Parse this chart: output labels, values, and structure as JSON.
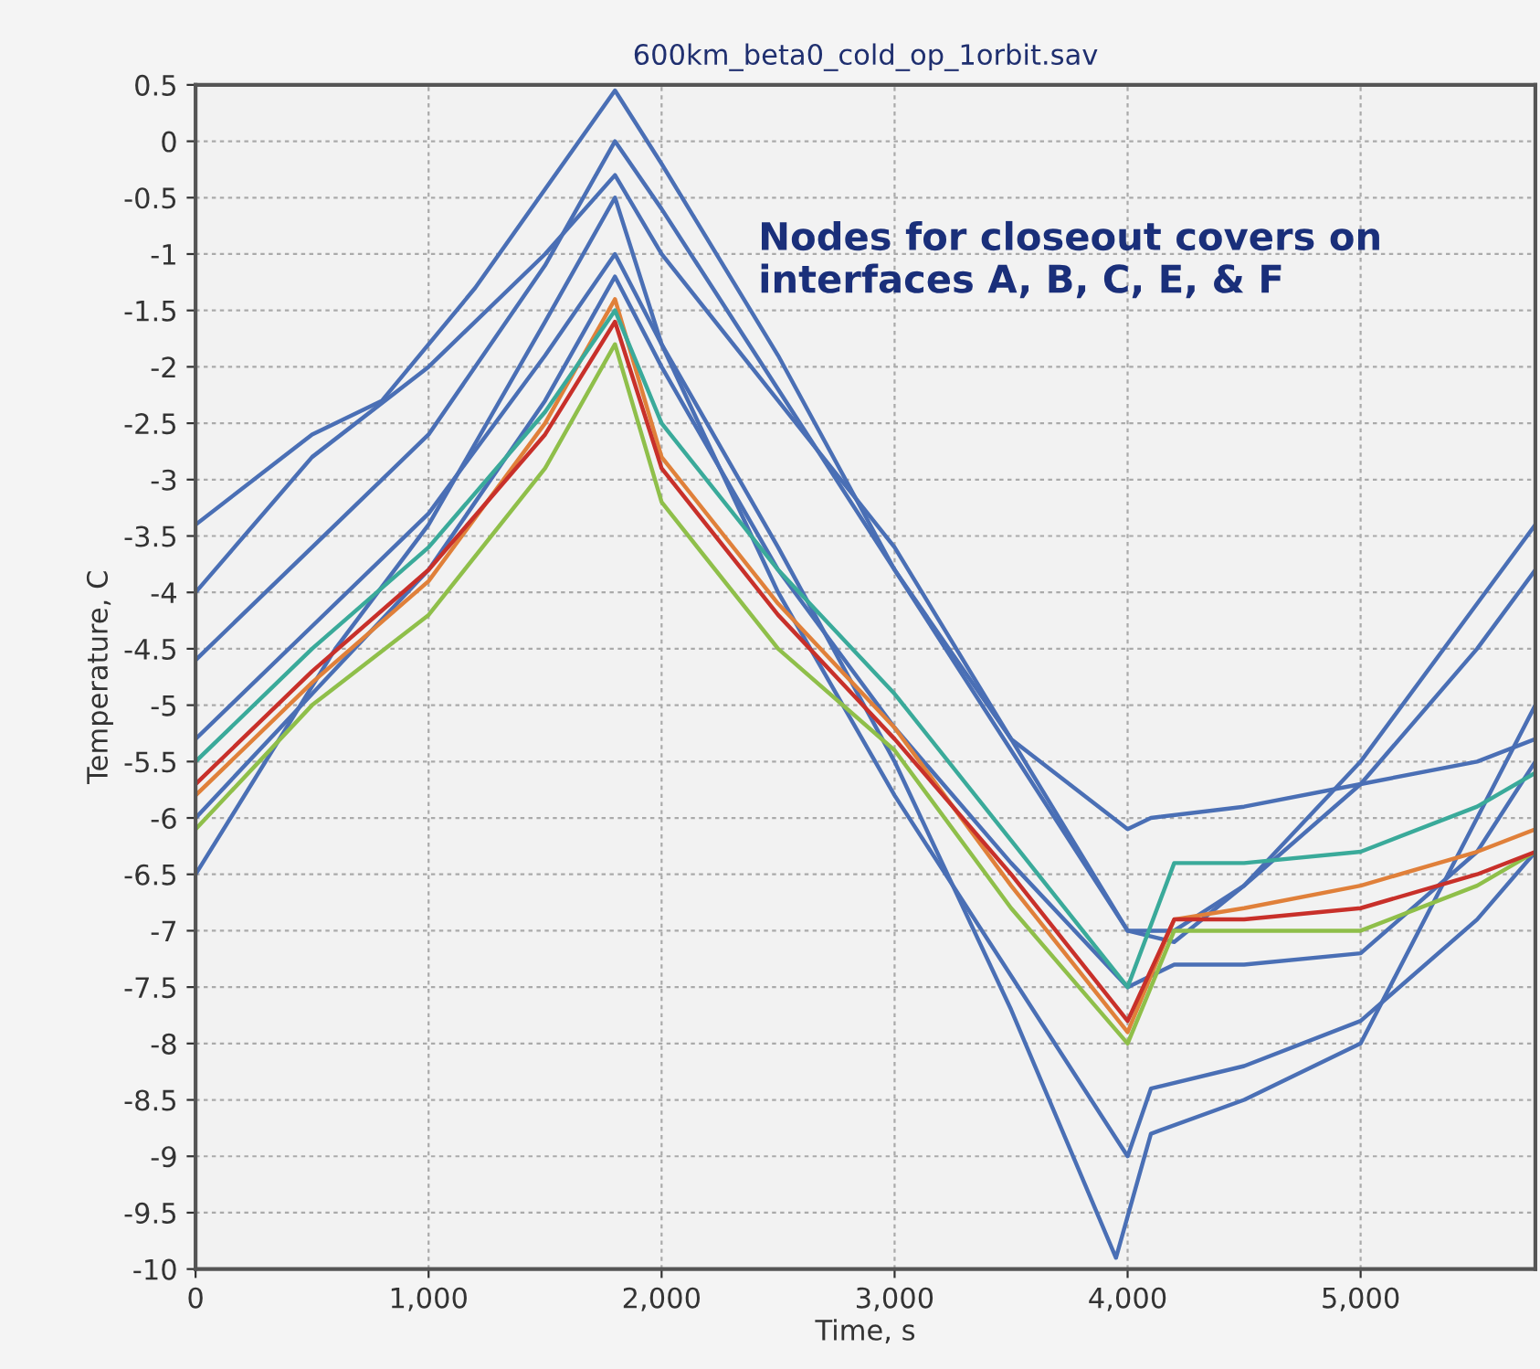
{
  "chart_data": {
    "type": "line",
    "title": "600km_beta0_cold_op_1orbit.sav",
    "xlabel": "Time, s",
    "ylabel": "Temperature, C",
    "annotations": [
      "Nodes for closeout covers on interfaces A, B, C, E, & F"
    ],
    "xlim": [
      0,
      5750
    ],
    "ylim": [
      -10,
      0.5
    ],
    "xticks": [
      0,
      {
        "value": 1000,
        "label": "1,000"
      },
      {
        "value": 2000,
        "label": "2,000"
      },
      {
        "value": 3000,
        "label": "3,000"
      },
      {
        "value": 4000,
        "label": "4,000"
      },
      {
        "value": 5000,
        "label": "5,000"
      }
    ],
    "yticks": [
      -10,
      -9.5,
      -9,
      -8.5,
      -8,
      -7.5,
      -7,
      -6.5,
      -6,
      -5.5,
      -5,
      -4.5,
      -4,
      -3.5,
      -3,
      -2.5,
      -2,
      -1.5,
      -1,
      -0.5,
      0,
      0.5
    ],
    "grid": true,
    "line_style": "solid",
    "marker": "none",
    "series": [
      {
        "color": "#4a6fb5",
        "x": [
          0,
          500,
          800,
          1200,
          1800,
          2000,
          2500,
          3000,
          3500,
          4000,
          4100,
          4500,
          5000,
          5500,
          5750
        ],
        "values": [
          -3.4,
          -2.6,
          -2.3,
          -1.3,
          0.45,
          -0.2,
          -1.9,
          -3.8,
          -5.3,
          -6.1,
          -6.0,
          -5.9,
          -5.7,
          -5.5,
          -5.3
        ]
      },
      {
        "color": "#4a6fb5",
        "x": [
          0,
          500,
          1000,
          1500,
          1800,
          2000,
          2500,
          3000,
          3500,
          4000,
          4200,
          4500,
          5000,
          5500,
          5750
        ],
        "values": [
          -4.0,
          -2.8,
          -2.0,
          -1.0,
          -0.3,
          -1.0,
          -2.3,
          -3.6,
          -5.3,
          -7.0,
          -7.1,
          -6.6,
          -5.5,
          -4.1,
          -3.4
        ]
      },
      {
        "color": "#4a6fb5",
        "x": [
          0,
          500,
          1000,
          1500,
          1800,
          2000,
          2500,
          3000,
          3500,
          4000,
          4200,
          4500,
          5000,
          5500,
          5750
        ],
        "values": [
          -4.6,
          -3.6,
          -2.6,
          -1.1,
          0.0,
          -0.6,
          -2.2,
          -3.8,
          -5.4,
          -7.0,
          -7.0,
          -6.6,
          -5.7,
          -4.5,
          -3.8
        ]
      },
      {
        "color": "#4a6fb5",
        "x": [
          0,
          500,
          1000,
          1500,
          1800,
          2000,
          2500,
          3000,
          3500,
          3950,
          4100,
          4500,
          5000,
          5500,
          5750
        ],
        "values": [
          -5.3,
          -4.3,
          -3.3,
          -1.9,
          -1.0,
          -1.8,
          -3.6,
          -5.5,
          -7.7,
          -9.9,
          -8.8,
          -8.5,
          -8.0,
          -6.0,
          -5.0
        ]
      },
      {
        "color": "#4a6fb5",
        "x": [
          0,
          600,
          1000,
          1500,
          1800,
          2000,
          2500,
          3000,
          3500,
          4000,
          4100,
          4500,
          5000,
          5500,
          5750
        ],
        "values": [
          -6.5,
          -4.5,
          -3.4,
          -1.6,
          -0.5,
          -1.8,
          -4.0,
          -5.8,
          -7.4,
          -9.0,
          -8.4,
          -8.2,
          -7.8,
          -6.9,
          -6.3
        ]
      },
      {
        "color": "#4a6fb5",
        "x": [
          0,
          500,
          1000,
          1500,
          1800,
          2000,
          2500,
          3000,
          3500,
          4000,
          4200,
          4500,
          5000,
          5500,
          5750
        ],
        "values": [
          -6.0,
          -4.9,
          -3.8,
          -2.3,
          -1.2,
          -2.0,
          -3.8,
          -5.2,
          -6.4,
          -7.5,
          -7.3,
          -7.3,
          -7.2,
          -6.3,
          -5.5
        ]
      },
      {
        "color": "#e0803a",
        "x": [
          0,
          500,
          1000,
          1500,
          1800,
          2000,
          2500,
          3000,
          3500,
          4000,
          4200,
          4500,
          5000,
          5500,
          5750
        ],
        "values": [
          -5.8,
          -4.8,
          -3.9,
          -2.5,
          -1.4,
          -2.8,
          -4.1,
          -5.2,
          -6.6,
          -7.9,
          -6.9,
          -6.8,
          -6.6,
          -6.3,
          -6.1
        ]
      },
      {
        "color": "#8fbf4a",
        "x": [
          0,
          500,
          1000,
          1500,
          1800,
          2000,
          2500,
          3000,
          3500,
          4000,
          4200,
          4500,
          5000,
          5500,
          5750
        ],
        "values": [
          -6.1,
          -5.0,
          -4.2,
          -2.9,
          -1.8,
          -3.2,
          -4.5,
          -5.4,
          -6.8,
          -8.0,
          -7.0,
          -7.0,
          -7.0,
          -6.6,
          -6.3
        ]
      },
      {
        "color": "#3aaa9a",
        "x": [
          0,
          500,
          1000,
          1500,
          1800,
          2000,
          2500,
          3000,
          3500,
          4000,
          4200,
          4500,
          5000,
          5500,
          5750
        ],
        "values": [
          -5.5,
          -4.5,
          -3.6,
          -2.4,
          -1.5,
          -2.5,
          -3.8,
          -4.9,
          -6.2,
          -7.5,
          -6.4,
          -6.4,
          -6.3,
          -5.9,
          -5.6
        ]
      },
      {
        "color": "#c8302a",
        "x": [
          0,
          500,
          1000,
          1500,
          1800,
          2000,
          2500,
          3000,
          3500,
          4000,
          4200,
          4500,
          5000,
          5500,
          5750
        ],
        "values": [
          -5.7,
          -4.7,
          -3.8,
          -2.6,
          -1.6,
          -2.9,
          -4.2,
          -5.3,
          -6.5,
          -7.8,
          -6.9,
          -6.9,
          -6.8,
          -6.5,
          -6.3
        ]
      }
    ]
  }
}
